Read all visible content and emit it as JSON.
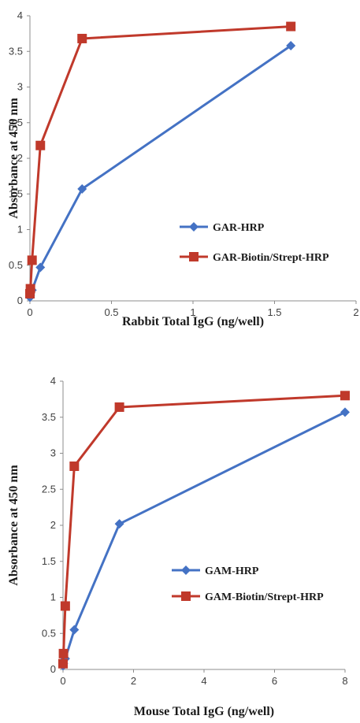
{
  "chart_data": [
    {
      "type": "line",
      "xlabel": "Rabbit Total IgG (ng/well)",
      "ylabel": "Absorbance at 450 nm",
      "xlim": [
        0,
        2
      ],
      "ylim": [
        0,
        4
      ],
      "xticks": [
        "0",
        "0.5",
        "1",
        "1.5",
        "2"
      ],
      "yticks": [
        "0",
        "0.5",
        "1",
        "1.5",
        "2",
        "2.5",
        "3",
        "3.5",
        "4"
      ],
      "legend_position": "center-right",
      "series": [
        {
          "name": "GAR-HRP",
          "color": "#4472C4",
          "marker": "diamond",
          "x": [
            0,
            0.003,
            0.013,
            0.064,
            0.32,
            1.6
          ],
          "y": [
            0.05,
            0.08,
            0.15,
            0.47,
            1.57,
            3.58
          ]
        },
        {
          "name": "GAR-Biotin/Strept-HRP",
          "color": "#C0392B",
          "marker": "square",
          "x": [
            0,
            0.003,
            0.013,
            0.064,
            0.32,
            1.6
          ],
          "y": [
            0.1,
            0.17,
            0.57,
            2.18,
            3.68,
            3.85
          ]
        }
      ]
    },
    {
      "type": "line",
      "xlabel": "Mouse Total IgG (ng/well)",
      "ylabel": "Absorbance at 450 nm",
      "xlim": [
        0,
        8
      ],
      "ylim": [
        0,
        4
      ],
      "xticks": [
        "0",
        "2",
        "4",
        "6",
        "8"
      ],
      "yticks": [
        "0",
        "0.5",
        "1",
        "1.5",
        "2",
        "2.5",
        "3",
        "3.5",
        "4"
      ],
      "legend_position": "center-right",
      "series": [
        {
          "name": "GAM-HRP",
          "color": "#4472C4",
          "marker": "diamond",
          "x": [
            0,
            0.013,
            0.064,
            0.32,
            1.6,
            8
          ],
          "y": [
            0.05,
            0.08,
            0.15,
            0.55,
            2.02,
            3.57
          ]
        },
        {
          "name": "GAM-Biotin/Strept-HRP",
          "color": "#C0392B",
          "marker": "square",
          "x": [
            0,
            0.013,
            0.064,
            0.32,
            1.6,
            8
          ],
          "y": [
            0.08,
            0.22,
            0.88,
            2.82,
            3.64,
            3.8
          ]
        }
      ]
    }
  ]
}
